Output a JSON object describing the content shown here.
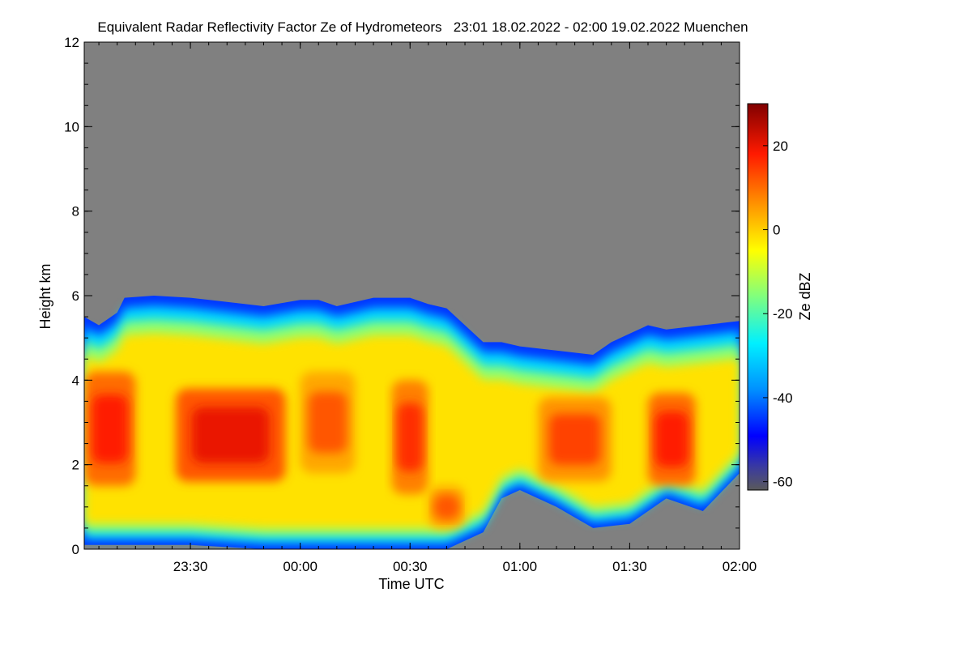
{
  "chart_data": {
    "type": "heatmap",
    "title": "Equivalent Radar Reflectivity Factor Ze of Hydrometeors   23:01 18.02.2022 - 02:00 19.02.2022 Muenchen",
    "xlabel": "Time UTC",
    "ylabel": "Height km",
    "x_range": [
      "23:01",
      "02:00"
    ],
    "x_ticks": [
      "23:30",
      "00:00",
      "00:30",
      "01:00",
      "01:30",
      "02:00"
    ],
    "ylim": [
      0,
      12
    ],
    "y_ticks": [
      0,
      2,
      4,
      6,
      8,
      10,
      12
    ],
    "no_data_color": "#808080",
    "colorbar": {
      "label": "Ze dBZ",
      "range": [
        -62,
        30
      ],
      "ticks": [
        -60,
        -40,
        -20,
        0,
        20
      ],
      "colormap": "jet"
    },
    "echo_top_km": [
      {
        "time": "23:01",
        "top": 5.5
      },
      {
        "time": "23:05",
        "top": 5.3
      },
      {
        "time": "23:10",
        "top": 5.6
      },
      {
        "time": "23:12",
        "top": 5.95
      },
      {
        "time": "23:20",
        "top": 6.0
      },
      {
        "time": "23:30",
        "top": 5.95
      },
      {
        "time": "23:40",
        "top": 5.85
      },
      {
        "time": "23:50",
        "top": 5.75
      },
      {
        "time": "00:00",
        "top": 5.9
      },
      {
        "time": "00:05",
        "top": 5.9
      },
      {
        "time": "00:10",
        "top": 5.75
      },
      {
        "time": "00:20",
        "top": 5.95
      },
      {
        "time": "00:30",
        "top": 5.95
      },
      {
        "time": "00:35",
        "top": 5.8
      },
      {
        "time": "00:40",
        "top": 5.7
      },
      {
        "time": "00:45",
        "top": 5.3
      },
      {
        "time": "00:50",
        "top": 4.9
      },
      {
        "time": "00:55",
        "top": 4.9
      },
      {
        "time": "01:00",
        "top": 4.8
      },
      {
        "time": "01:10",
        "top": 4.7
      },
      {
        "time": "01:20",
        "top": 4.6
      },
      {
        "time": "01:25",
        "top": 4.9
      },
      {
        "time": "01:30",
        "top": 5.1
      },
      {
        "time": "01:35",
        "top": 5.3
      },
      {
        "time": "01:40",
        "top": 5.2
      },
      {
        "time": "01:50",
        "top": 5.3
      },
      {
        "time": "02:00",
        "top": 5.4
      }
    ],
    "echo_base_km": [
      {
        "time": "23:01",
        "base": 0.1
      },
      {
        "time": "23:30",
        "base": 0.1
      },
      {
        "time": "23:50",
        "base": 0.0
      },
      {
        "time": "00:40",
        "base": 0.0
      },
      {
        "time": "00:50",
        "base": 0.4
      },
      {
        "time": "00:55",
        "base": 1.2
      },
      {
        "time": "01:00",
        "base": 1.4
      },
      {
        "time": "01:10",
        "base": 1.0
      },
      {
        "time": "01:20",
        "base": 0.5
      },
      {
        "time": "01:30",
        "base": 0.6
      },
      {
        "time": "01:40",
        "base": 1.2
      },
      {
        "time": "01:50",
        "base": 0.9
      },
      {
        "time": "02:00",
        "base": 1.8
      }
    ],
    "high_reflectivity_cells": [
      {
        "time_start": "23:01",
        "time_end": "23:15",
        "base_km": 1.5,
        "top_km": 4.2,
        "peak_dbz": 18
      },
      {
        "time_start": "23:26",
        "time_end": "23:56",
        "base_km": 1.6,
        "top_km": 3.8,
        "peak_dbz": 20
      },
      {
        "time_start": "00:00",
        "time_end": "00:15",
        "base_km": 1.8,
        "top_km": 4.2,
        "peak_dbz": 12
      },
      {
        "time_start": "00:25",
        "time_end": "00:35",
        "base_km": 1.3,
        "top_km": 4.0,
        "peak_dbz": 16
      },
      {
        "time_start": "00:35",
        "time_end": "00:45",
        "base_km": 0.5,
        "top_km": 1.5,
        "peak_dbz": 12
      },
      {
        "time_start": "01:05",
        "time_end": "01:25",
        "base_km": 1.6,
        "top_km": 3.6,
        "peak_dbz": 14
      },
      {
        "time_start": "01:35",
        "time_end": "01:48",
        "base_km": 1.5,
        "top_km": 3.7,
        "peak_dbz": 18
      }
    ]
  }
}
